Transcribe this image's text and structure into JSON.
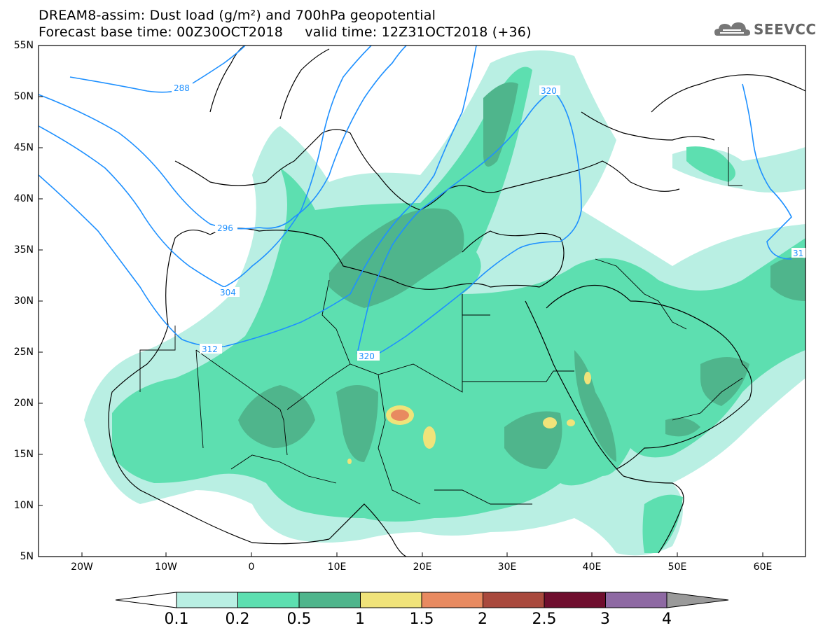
{
  "header": {
    "line1": "DREAM8-assim: Dust load (g/m²) and 700hPa geopotential",
    "line2": "Forecast base time: 00Z30OCT2018     valid time: 12Z31OCT2018 (+36)"
  },
  "logo": {
    "text": "SEEVCCC",
    "icon": "cloud-icon"
  },
  "axes": {
    "lat_labels": [
      "55N",
      "50N",
      "45N",
      "40N",
      "35N",
      "30N",
      "25N",
      "20N",
      "15N",
      "10N",
      "5N"
    ],
    "lon_labels": [
      "20W",
      "10W",
      "0",
      "10E",
      "20E",
      "30E",
      "40E",
      "50E",
      "60E"
    ]
  },
  "contour_labels": [
    {
      "id": "c288",
      "text": "288"
    },
    {
      "id": "c296",
      "text": "296"
    },
    {
      "id": "c304",
      "text": "304"
    },
    {
      "id": "c312",
      "text": "312"
    },
    {
      "id": "c320a",
      "text": "320"
    },
    {
      "id": "c320b",
      "text": "320"
    },
    {
      "id": "c31",
      "text": "31"
    }
  ],
  "colorbar": {
    "labels": [
      "0.1",
      "0.2",
      "0.5",
      "1",
      "1.5",
      "2",
      "2.5",
      "3",
      "4"
    ],
    "colors": [
      "#ffffff",
      "#b9efe3",
      "#5ddfb0",
      "#4fb58c",
      "#f0e37a",
      "#e88a60",
      "#a9493d",
      "#6f0e2e",
      "#8e69a3",
      "#9a9a9a"
    ]
  },
  "colors": {
    "contour": "#1e90ff",
    "level1": "#b9efe3",
    "level2": "#5ddfb0",
    "level3": "#4fb58c",
    "level4": "#f0e37a",
    "level5": "#e88a60"
  }
}
